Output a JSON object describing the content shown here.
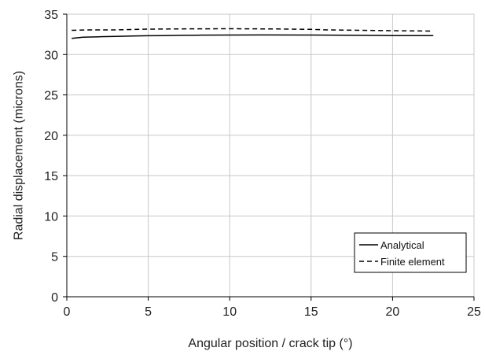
{
  "chart_data": {
    "type": "line",
    "title": "",
    "xlabel": "Angular position / crack tip (°)",
    "ylabel": "Radial displacement (microns)",
    "xlim": [
      0,
      25
    ],
    "ylim": [
      0,
      35
    ],
    "xticks": [
      "0",
      "5",
      "10",
      "15",
      "20",
      "25"
    ],
    "yticks": [
      "0",
      "5",
      "10",
      "15",
      "20",
      "25",
      "30",
      "35"
    ],
    "grid": true,
    "legend_position": "bottom-right",
    "series": [
      {
        "name": "Analytical",
        "style": "solid",
        "color": "#000000",
        "x": [
          0.3,
          1,
          2,
          3,
          4,
          5,
          6,
          7,
          8,
          10,
          12,
          15,
          17,
          19,
          20,
          22.5
        ],
        "y": [
          32.0,
          32.15,
          32.2,
          32.25,
          32.3,
          32.33,
          32.35,
          32.38,
          32.4,
          32.42,
          32.43,
          32.42,
          32.4,
          32.37,
          32.35,
          32.35
        ]
      },
      {
        "name": "Finite element",
        "style": "dashed",
        "color": "#000000",
        "x": [
          0.3,
          1.3,
          2,
          3,
          4,
          5,
          7,
          10,
          13,
          15,
          16,
          18,
          20,
          22.5
        ],
        "y": [
          33.0,
          33.05,
          33.05,
          33.05,
          33.1,
          33.15,
          33.18,
          33.2,
          33.17,
          33.12,
          33.05,
          33.0,
          32.95,
          32.9
        ]
      }
    ]
  }
}
